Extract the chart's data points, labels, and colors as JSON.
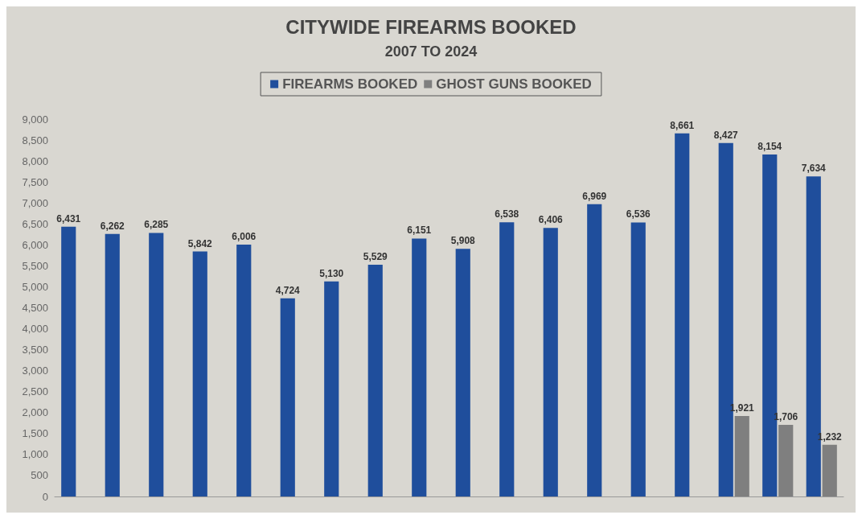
{
  "chart_data": {
    "type": "bar",
    "title": "CITYWIDE FIREARMS BOOKED",
    "subtitle": "2007 TO 2024",
    "categories": [
      null,
      null,
      null,
      null,
      null,
      null,
      null,
      null,
      null,
      null,
      null,
      null,
      null,
      null,
      null,
      null,
      null,
      null
    ],
    "series": [
      {
        "name": "FIREARMS BOOKED",
        "color": "#1f4e9c",
        "values": [
          6431,
          6262,
          6285,
          5842,
          6006,
          4724,
          5130,
          5529,
          6151,
          5908,
          6538,
          6406,
          6969,
          6536,
          8661,
          8427,
          8154,
          7634
        ],
        "value_labels": [
          "6,431",
          "6,262",
          "6,285",
          "5,842",
          "6,006",
          "4,724",
          "5,130",
          "5,529",
          "6,151",
          "5,908",
          "6,538",
          "6,406",
          "6,969",
          "6,536",
          "8,661",
          "8,427",
          "8,154",
          "7,634"
        ]
      },
      {
        "name": "GHOST GUNS BOOKED",
        "color": "#7f7f7f",
        "values": [
          null,
          null,
          null,
          null,
          null,
          null,
          null,
          null,
          null,
          null,
          null,
          null,
          null,
          null,
          null,
          1921,
          1706,
          1232
        ],
        "value_labels": [
          null,
          null,
          null,
          null,
          null,
          null,
          null,
          null,
          null,
          null,
          null,
          null,
          null,
          null,
          null,
          "1,921",
          "1,706",
          "1,232"
        ]
      }
    ],
    "ylim": [
      0,
      9000
    ],
    "yticks": [
      {
        "value": 0,
        "label": "0"
      },
      {
        "value": 500,
        "label": "500"
      },
      {
        "value": 1000,
        "label": "1,000"
      },
      {
        "value": 1500,
        "label": "1,500"
      },
      {
        "value": 2000,
        "label": "2,000"
      },
      {
        "value": 2500,
        "label": "2,500"
      },
      {
        "value": 3000,
        "label": "3,000"
      },
      {
        "value": 3500,
        "label": "3,500"
      },
      {
        "value": 4000,
        "label": "4,000"
      },
      {
        "value": 4500,
        "label": "4,500"
      },
      {
        "value": 5000,
        "label": "5,000"
      },
      {
        "value": 5500,
        "label": "5,500"
      },
      {
        "value": 6000,
        "label": "6,000"
      },
      {
        "value": 6500,
        "label": "6,500"
      },
      {
        "value": 7000,
        "label": "7,000"
      },
      {
        "value": 7500,
        "label": "7,500"
      },
      {
        "value": 8000,
        "label": "8,000"
      },
      {
        "value": 8500,
        "label": "8,500"
      },
      {
        "value": 9000,
        "label": "9,000"
      }
    ],
    "grid": false,
    "legend": "top"
  }
}
